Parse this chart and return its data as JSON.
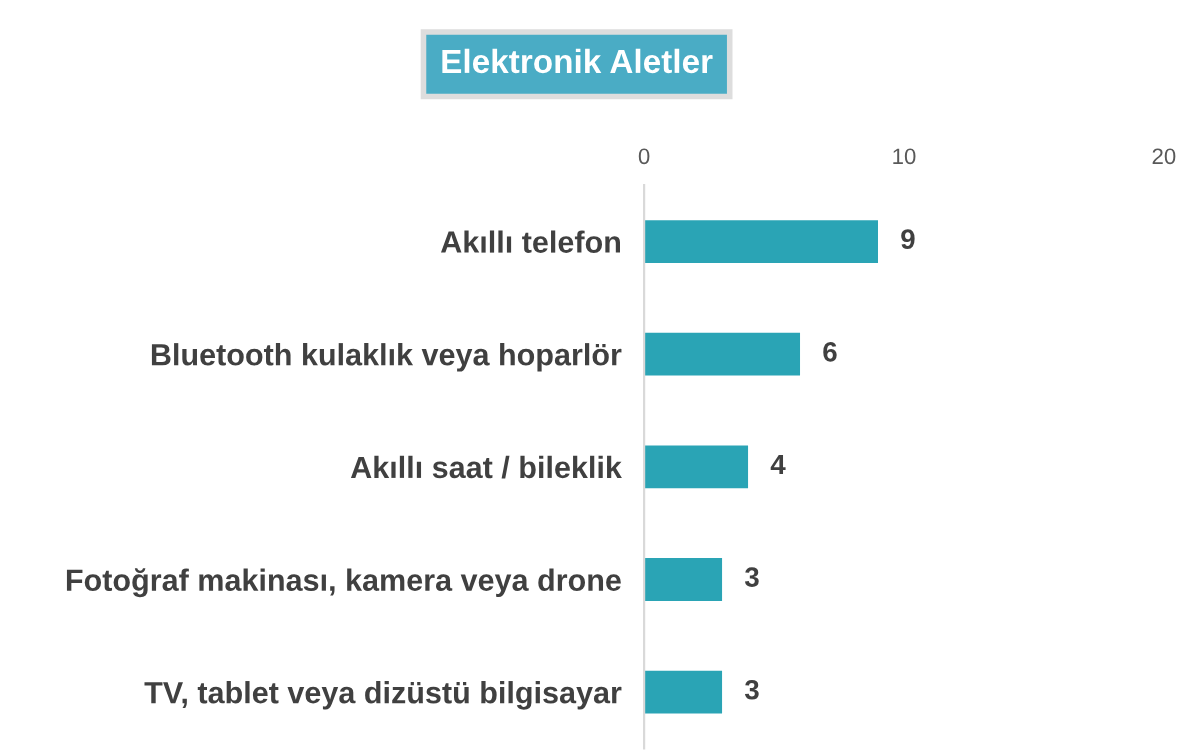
{
  "chart_data": {
    "type": "bar",
    "orientation": "horizontal",
    "title": "Elektronik Aletler",
    "categories": [
      "Akıllı telefon",
      "Bluetooth kulaklık veya hoparlör",
      "Akıllı saat / bileklik",
      "Fotoğraf makinası, kamera veya drone",
      "TV, tablet veya dizüstü bilgisayar"
    ],
    "values": [
      9,
      6,
      4,
      3,
      3
    ],
    "color": "#2aa4b5",
    "xlim": [
      0,
      20
    ],
    "xticks": [
      0,
      10,
      20
    ],
    "grid": false,
    "data_labels": true
  }
}
